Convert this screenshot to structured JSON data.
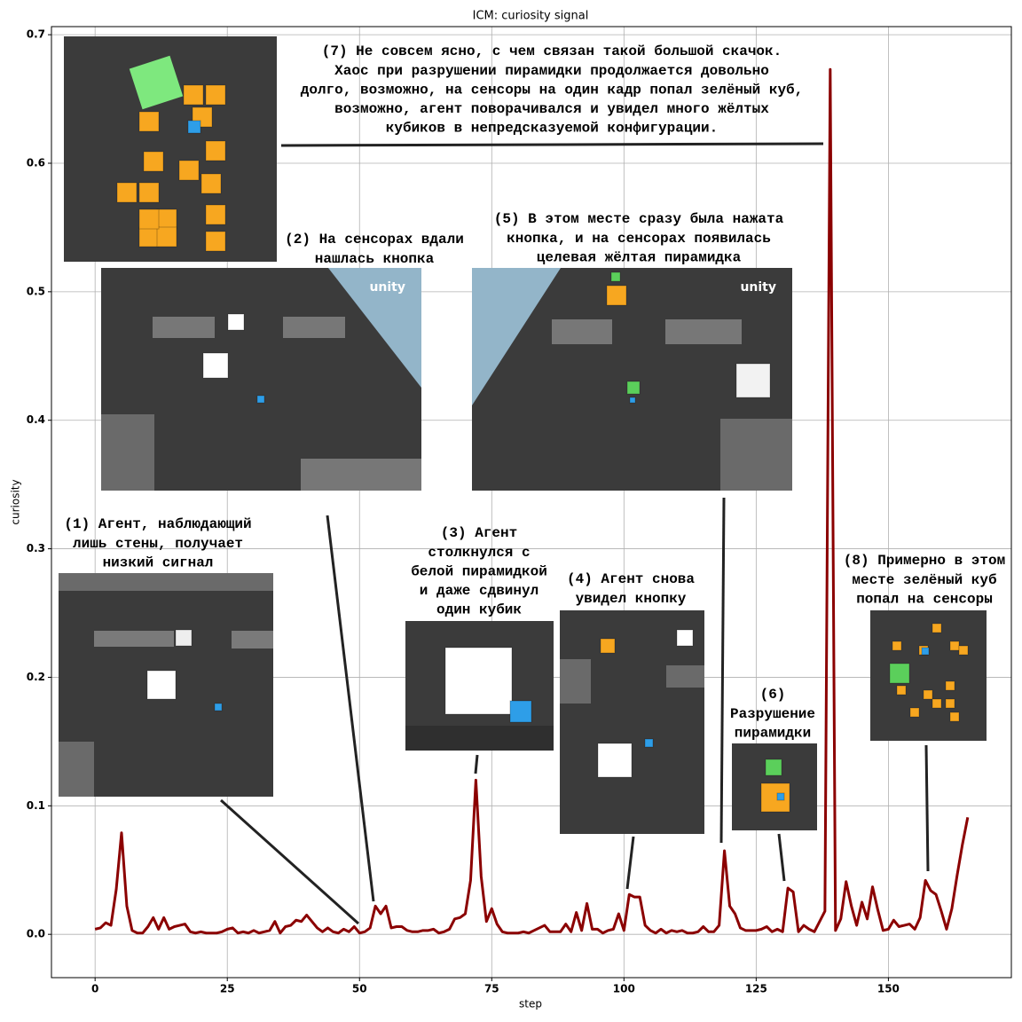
{
  "chart_data": {
    "type": "line",
    "title": "ICM: curiosity signal",
    "x_label": "step",
    "y_label": "curiosity",
    "color": "#8b0000",
    "grid": true,
    "xlim": [
      -8.25,
      173.25
    ],
    "ylim": [
      -0.0337,
      0.7063
    ],
    "xticks": [
      0,
      25,
      50,
      75,
      100,
      125,
      150
    ],
    "yticks": [
      {
        "value": 0,
        "label": "0.0"
      },
      0.1,
      0.2,
      0.3,
      0.4,
      0.5,
      0.6,
      0.7
    ],
    "x": [
      0,
      1,
      2,
      3,
      4,
      5,
      6,
      7,
      8,
      9,
      10,
      11,
      12,
      13,
      14,
      15,
      16,
      17,
      18,
      19,
      20,
      21,
      22,
      23,
      24,
      25,
      26,
      27,
      28,
      29,
      30,
      31,
      32,
      33,
      34,
      35,
      36,
      37,
      38,
      39,
      40,
      41,
      42,
      43,
      44,
      45,
      46,
      47,
      48,
      49,
      50,
      51,
      52,
      53,
      54,
      55,
      56,
      57,
      58,
      59,
      60,
      61,
      62,
      63,
      64,
      65,
      66,
      67,
      68,
      69,
      70,
      71,
      72,
      73,
      74,
      75,
      76,
      77,
      78,
      79,
      80,
      81,
      82,
      83,
      84,
      85,
      86,
      87,
      88,
      89,
      90,
      91,
      92,
      93,
      94,
      95,
      96,
      97,
      98,
      99,
      100,
      101,
      102,
      103,
      104,
      105,
      106,
      107,
      108,
      109,
      110,
      111,
      112,
      113,
      114,
      115,
      116,
      117,
      118,
      119,
      120,
      121,
      122,
      123,
      124,
      125,
      126,
      127,
      128,
      129,
      130,
      131,
      132,
      133,
      134,
      135,
      136,
      137,
      138,
      139,
      140,
      141,
      142,
      143,
      144,
      145,
      146,
      147,
      148,
      149,
      150,
      151,
      152,
      153,
      154,
      155,
      156,
      157,
      158,
      159,
      160,
      161,
      162,
      163,
      164,
      165
    ],
    "values": [
      0.004,
      0.005,
      0.009,
      0.007,
      0.035,
      0.079,
      0.022,
      0.003,
      0.001,
      0.001,
      0.006,
      0.013,
      0.004,
      0.013,
      0.004,
      0.006,
      0.007,
      0.008,
      0.002,
      0.001,
      0.002,
      0.001,
      0.001,
      0.001,
      0.002,
      0.004,
      0.005,
      0.001,
      0.002,
      0.001,
      0.003,
      0.001,
      0.002,
      0.003,
      0.01,
      0.001,
      0.006,
      0.007,
      0.011,
      0.01,
      0.015,
      0.01,
      0.005,
      0.002,
      0.005,
      0.002,
      0.001,
      0.004,
      0.002,
      0.006,
      0.001,
      0.002,
      0.005,
      0.022,
      0.016,
      0.022,
      0.005,
      0.006,
      0.006,
      0.003,
      0.002,
      0.002,
      0.003,
      0.003,
      0.004,
      0.001,
      0.002,
      0.004,
      0.012,
      0.013,
      0.016,
      0.042,
      0.12,
      0.045,
      0.01,
      0.02,
      0.008,
      0.002,
      0.001,
      0.001,
      0.001,
      0.002,
      0.001,
      0.003,
      0.005,
      0.007,
      0.002,
      0.002,
      0.002,
      0.008,
      0.002,
      0.017,
      0.003,
      0.024,
      0.004,
      0.004,
      0.001,
      0.003,
      0.004,
      0.016,
      0.003,
      0.031,
      0.029,
      0.029,
      0.007,
      0.003,
      0.001,
      0.004,
      0.001,
      0.003,
      0.002,
      0.003,
      0.001,
      0.001,
      0.002,
      0.006,
      0.002,
      0.002,
      0.007,
      0.065,
      0.022,
      0.016,
      0.005,
      0.003,
      0.003,
      0.003,
      0.004,
      0.006,
      0.002,
      0.004,
      0.002,
      0.036,
      0.033,
      0.002,
      0.007,
      0.004,
      0.002,
      0.01,
      0.018,
      0.673,
      0.003,
      0.012,
      0.041,
      0.022,
      0.007,
      0.025,
      0.012,
      0.037,
      0.019,
      0.003,
      0.004,
      0.011,
      0.006,
      0.007,
      0.008,
      0.004,
      0.013,
      0.042,
      0.034,
      0.031,
      0.018,
      0.004,
      0.02,
      0.046,
      0.07,
      0.091
    ],
    "annotations": [
      {
        "lines": [
          "(1) Агент, наблюдающий",
          "лишь стены, получает",
          "низкий сигнал"
        ]
      },
      {
        "lines": [
          "(2) На сенсорах вдали",
          "нашлась кнопка"
        ]
      },
      {
        "lines": [
          "(3) Агент",
          "столкнулся с",
          "белой пирамидкой",
          "и даже сдвинул",
          "один кубик"
        ]
      },
      {
        "lines": [
          "(4) Агент снова",
          "увидел кнопку"
        ]
      },
      {
        "lines": [
          "(5) В этом месте сразу была нажата",
          "кнопка, и на сенсорах появилась",
          "целевая жёлтая пирамидка"
        ]
      },
      {
        "lines": [
          "(6)",
          "Разрушение",
          "пирамидки"
        ]
      },
      {
        "lines": [
          "(7) Не совсем ясно, с чем связан такой большой скачок.",
          "Хаос при разрушении пирамидки продолжается довольно",
          "долго, возможно, на сенсоры на один кадр попал зелёный куб,",
          "возможно, агент поворачивался и увидел много жёлтых",
          "кубиков в непредсказуемой конфигурации."
        ]
      },
      {
        "lines": [
          "(8) Примерно в этом",
          "месте зелёный куб",
          "попал на сенсоры"
        ]
      }
    ],
    "screenshot_logo": "unity"
  }
}
